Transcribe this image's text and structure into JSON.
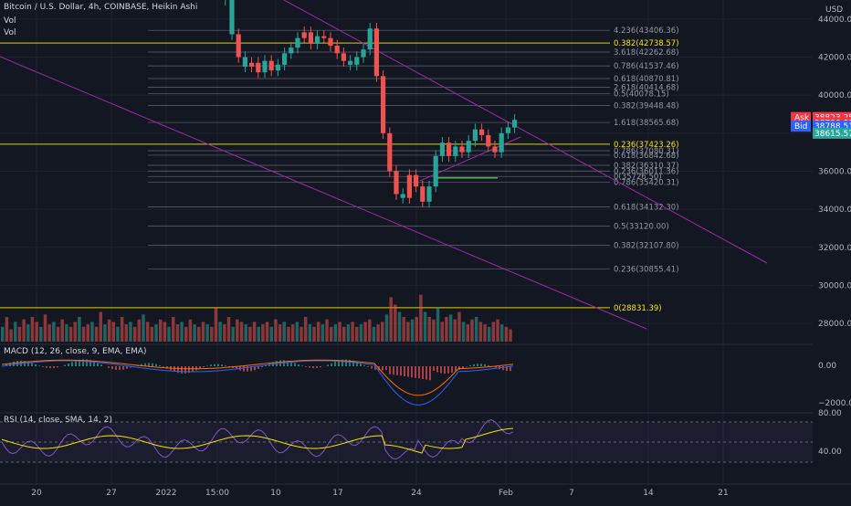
{
  "header": {
    "title": "Bitcoin / U.S. Dollar, 4h, COINBASE, Heikin Ashi",
    "vol1": "Vol",
    "vol2": "Vol",
    "currency": "USD"
  },
  "price_axis": {
    "ticks": [
      "44000.00",
      "42000.00",
      "40000.00",
      "38000.00",
      "36000.00",
      "34000.00",
      "32000.00",
      "30000.00",
      "28000.00"
    ],
    "ask": {
      "label": "Ask",
      "value": "38823.25",
      "second": "38796.80"
    },
    "bid": {
      "label": "Bid",
      "value": "38788.51",
      "second": "38615.57"
    }
  },
  "fib_levels": [
    {
      "text": "4.236(43406.36)",
      "style": "gray"
    },
    {
      "text": "0.382(42738.57)",
      "style": "yellow"
    },
    {
      "text": "3.618(42262.68)",
      "style": "gray"
    },
    {
      "text": "0.786(41537.46)",
      "style": "gray"
    },
    {
      "text": "0.618(40870.81)",
      "style": "gray"
    },
    {
      "text": "2.618(40414.68)",
      "style": "gray"
    },
    {
      "text": "0.5(40078.15)",
      "style": "gray"
    },
    {
      "text": "0.382(39448.48)",
      "style": "gray"
    },
    {
      "text": "1.618(38565.68)",
      "style": "gray"
    },
    {
      "text": "0.236(37423.26)",
      "style": "yellow"
    },
    {
      "text": "0.786(37080.31)",
      "style": "gray"
    },
    {
      "text": "0.618(36842.68)",
      "style": "gray"
    },
    {
      "text": "0.382(36310.37)",
      "style": "gray"
    },
    {
      "text": "0.236(36011.36)",
      "style": "gray"
    },
    {
      "text": "0(35726.50)",
      "style": "gray"
    },
    {
      "text": "0.786(35420.31)",
      "style": "gray"
    },
    {
      "text": "0.618(34132.30)",
      "style": "gray"
    },
    {
      "text": "0.5(33120.00)",
      "style": "gray"
    },
    {
      "text": "0.382(32107.80)",
      "style": "gray"
    },
    {
      "text": "0.236(30855.41)",
      "style": "gray"
    },
    {
      "text": "0(28831.39)",
      "style": "yellow"
    }
  ],
  "macd": {
    "label": "MACD (12, 26, close, 9, EMA, EMA)",
    "ticks": [
      "0.00",
      "−2000.00"
    ]
  },
  "rsi": {
    "label": "RSI (14, close, SMA, 14, 2)",
    "ticks": [
      "80.00",
      "40.00"
    ]
  },
  "time_axis": {
    "ticks": [
      "20",
      "27",
      "2022",
      "15:00",
      "10",
      "17",
      "24",
      "Feb",
      "7",
      "14",
      "21"
    ]
  },
  "colors": {
    "background": "#131722",
    "bull": "#26a69a",
    "bear": "#ef5350",
    "fib_line": "#787b86",
    "yellow": "#f5e400",
    "channel": "#9c27b0",
    "macd_line": "#2962ff",
    "signal_line": "#ff6d00",
    "rsi_line": "#7e57c2",
    "rsi_ma": "#f5e400",
    "ask": "#f23645",
    "bid": "#2962ff",
    "last": "#26a69a"
  },
  "chart_data": {
    "type": "candlestick",
    "title": "Bitcoin / U.S. Dollar, 4h, COINBASE, Heikin Ashi",
    "x_ticks": [
      "20",
      "27",
      "2022",
      "15:00",
      "10",
      "17",
      "24",
      "Feb",
      "7",
      "14",
      "21"
    ],
    "ylim": [
      27000,
      45000
    ],
    "price_path": [
      [
        46400,
        0
      ],
      [
        45000,
        1
      ],
      [
        43200,
        1
      ],
      [
        42000,
        0
      ],
      [
        41500,
        1
      ],
      [
        41700,
        0
      ],
      [
        41200,
        0
      ],
      [
        41800,
        1
      ],
      [
        41300,
        0
      ],
      [
        41600,
        1
      ],
      [
        42200,
        1
      ],
      [
        42500,
        1
      ],
      [
        43000,
        1
      ],
      [
        43300,
        0
      ],
      [
        42700,
        0
      ],
      [
        43100,
        1
      ],
      [
        43000,
        0
      ],
      [
        42600,
        0
      ],
      [
        42200,
        0
      ],
      [
        41800,
        0
      ],
      [
        41600,
        1
      ],
      [
        42000,
        1
      ],
      [
        42400,
        1
      ],
      [
        43500,
        1
      ],
      [
        41000,
        0
      ],
      [
        38000,
        0
      ],
      [
        36000,
        0
      ],
      [
        34800,
        0
      ],
      [
        34600,
        1
      ],
      [
        35800,
        0
      ],
      [
        35200,
        0
      ],
      [
        34400,
        0
      ],
      [
        35200,
        1
      ],
      [
        36800,
        1
      ],
      [
        37500,
        1
      ],
      [
        36800,
        0
      ],
      [
        37300,
        1
      ],
      [
        37000,
        0
      ],
      [
        37600,
        1
      ],
      [
        38200,
        1
      ],
      [
        37900,
        0
      ],
      [
        37300,
        0
      ],
      [
        37000,
        0
      ],
      [
        38000,
        1
      ],
      [
        38300,
        1
      ],
      [
        38700,
        1
      ]
    ],
    "volume": [
      0.3,
      0.5,
      0.25,
      0.4,
      0.3,
      0.45,
      0.35,
      0.5,
      0.4,
      0.3,
      0.55,
      0.35,
      0.4,
      0.3,
      0.45,
      0.35,
      0.3,
      0.4,
      0.5,
      0.3,
      0.35,
      0.4,
      0.3,
      0.6,
      0.35,
      0.45,
      0.4,
      0.3,
      0.5,
      0.35,
      0.4,
      0.3,
      0.45,
      0.55,
      0.4,
      0.3,
      0.35,
      0.45,
      0.4,
      0.3,
      0.5,
      0.35,
      0.4,
      0.3,
      0.45,
      0.35,
      0.3,
      0.4,
      0.35,
      0.3,
      0.7,
      0.4,
      0.35,
      0.5,
      0.3,
      0.45,
      0.4,
      0.35,
      0.3,
      0.4,
      0.3,
      0.35,
      0.4,
      0.3,
      0.45,
      0.35,
      0.4,
      0.3,
      0.35,
      0.4,
      0.3,
      0.5,
      0.35,
      0.3,
      0.4,
      0.35,
      0.45,
      0.3,
      0.35,
      0.4,
      0.3,
      0.35,
      0.4,
      0.3,
      0.35,
      0.4,
      0.45,
      0.3,
      0.35,
      0.4,
      0.55,
      0.9,
      0.75,
      0.6,
      0.5,
      0.4,
      0.45,
      0.5,
      0.95,
      0.6,
      0.5,
      0.45,
      0.7,
      0.4,
      0.5,
      0.55,
      0.45,
      0.6,
      0.4,
      0.35,
      0.45,
      0.5,
      0.4,
      0.35,
      0.3,
      0.4,
      0.45,
      0.35,
      0.3,
      0.25
    ]
  }
}
